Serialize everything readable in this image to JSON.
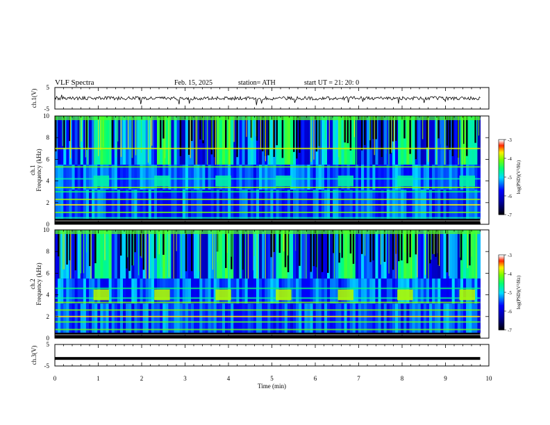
{
  "header": {
    "title": "VLF  Spectra",
    "date": "Feb. 15, 2025",
    "station": "station= ATH",
    "start": "start  UT  =   21: 20: 0"
  },
  "panels": {
    "ch1_wave": {
      "ylabel": "ch.1(V)",
      "ticks": [
        "5",
        "-5"
      ]
    },
    "ch1_spec": {
      "ylabel_top": "ch.1",
      "ylabel": "Frequency (kHz)",
      "ticks": [
        "10",
        "8",
        "6",
        "4",
        "2",
        "0"
      ]
    },
    "ch2_spec": {
      "ylabel_top": "ch.2",
      "ylabel": "Frequency (kHz)",
      "ticks": [
        "10",
        "8",
        "6",
        "4",
        "2",
        "0"
      ]
    },
    "ch3_wave": {
      "ylabel": "ch.3(V)",
      "ticks": [
        "5",
        "-5"
      ]
    }
  },
  "xaxis": {
    "label": "Time  (min)",
    "ticks": [
      "0",
      "1",
      "2",
      "3",
      "4",
      "5",
      "6",
      "7",
      "8",
      "9",
      "10"
    ]
  },
  "colorbar": {
    "label": "log(PSD)(V²/Hz)",
    "ticks": [
      "-3",
      "-4",
      "-5",
      "-6",
      "-7"
    ],
    "colors": [
      "#000000",
      "#0000ff",
      "#00ffff",
      "#00ff00",
      "#ffff00",
      "#ff0000",
      "#ffffff"
    ]
  },
  "chart_data": {
    "type": "heatmap",
    "x_range_min": [
      0,
      10
    ],
    "data_end_min": 9.8,
    "channels": [
      {
        "name": "ch.1",
        "freq_range_khz": [
          0,
          10
        ],
        "psd_range_log": [
          -7,
          -3
        ],
        "bursts_center_min": [
          1.07,
          2.47,
          3.88,
          5.27,
          6.7,
          8.07,
          9.5
        ],
        "burst_band_khz": [
          3.5,
          4.5
        ],
        "lines_khz": [
          0.3,
          0.6,
          1.1,
          1.8,
          2.3,
          3.0,
          3.4,
          4.2,
          5.3,
          7.0
        ]
      },
      {
        "name": "ch.2",
        "freq_range_khz": [
          0,
          10
        ],
        "psd_range_log": [
          -7,
          -3
        ],
        "bursts_center_min": [
          1.07,
          2.47,
          3.88,
          5.27,
          6.7,
          8.07,
          9.5
        ],
        "burst_band_khz": [
          3.5,
          4.5
        ],
        "lines_khz": [
          0.3,
          0.8,
          1.5,
          2.0,
          2.6,
          3.3,
          3.7,
          4.6
        ]
      }
    ],
    "ch1_voltage_range": [
      -5,
      5
    ],
    "ch3_voltage_range": [
      -5,
      5
    ],
    "ch3_level_v": -1.5
  }
}
